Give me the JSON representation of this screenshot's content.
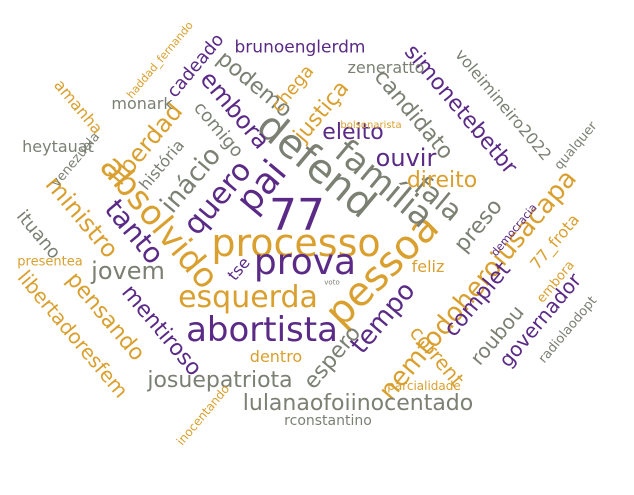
{
  "colors": {
    "gray": "#7b8073",
    "gold": "#d9a02f",
    "purple": "#5a2a86"
  },
  "words": [
    {
      "text": "77",
      "color": "purple"
    },
    {
      "text": "processo",
      "color": "gold"
    },
    {
      "text": "prova",
      "color": "purple"
    },
    {
      "text": "defend",
      "color": "gray"
    },
    {
      "text": "pai",
      "color": "purple"
    },
    {
      "text": "pessoa",
      "color": "gold"
    },
    {
      "text": "absolvido",
      "color": "gold"
    },
    {
      "text": "família",
      "color": "gray"
    },
    {
      "text": "abortista",
      "color": "purple"
    },
    {
      "text": "esquerda",
      "color": "gold"
    },
    {
      "text": "quero",
      "color": "purple"
    },
    {
      "text": "fala",
      "color": "gray"
    },
    {
      "text": "nemtodoheroiusacapa",
      "color": "gold"
    },
    {
      "text": "tanto",
      "color": "purple"
    },
    {
      "text": "inácio",
      "color": "gray"
    },
    {
      "text": "ministro",
      "color": "gold"
    },
    {
      "text": "liberdad",
      "color": "gold"
    },
    {
      "text": "embora",
      "color": "purple"
    },
    {
      "text": "podemo",
      "color": "gray"
    },
    {
      "text": "candidato",
      "color": "gray"
    },
    {
      "text": "simonetebetbr",
      "color": "purple"
    },
    {
      "text": "ouvir",
      "color": "purple"
    },
    {
      "text": "eleito",
      "color": "purple"
    },
    {
      "text": "direito",
      "color": "gold"
    },
    {
      "text": "justiça",
      "color": "gold"
    },
    {
      "text": "jovem",
      "color": "gray"
    },
    {
      "text": "josuepatriota",
      "color": "gray"
    },
    {
      "text": "lulanaofoiinocentado",
      "color": "gray"
    },
    {
      "text": "tempo",
      "color": "purple"
    },
    {
      "text": "espero",
      "color": "gray"
    },
    {
      "text": "mentiroso",
      "color": "purple"
    },
    {
      "text": "pensando",
      "color": "gold"
    },
    {
      "text": "libertadoresfem",
      "color": "gold"
    },
    {
      "text": "complet",
      "color": "purple"
    },
    {
      "text": "preso",
      "color": "gray"
    },
    {
      "text": "corrent",
      "color": "gold"
    },
    {
      "text": "roubou",
      "color": "gray"
    },
    {
      "text": "governador",
      "color": "purple"
    },
    {
      "text": "77_frota",
      "color": "gold"
    },
    {
      "text": "ituano",
      "color": "gray"
    },
    {
      "text": "história",
      "color": "gray"
    },
    {
      "text": "comigo",
      "color": "gray"
    },
    {
      "text": "chega",
      "color": "gold"
    },
    {
      "text": "cadeado",
      "color": "purple"
    },
    {
      "text": "monark",
      "color": "gray"
    },
    {
      "text": "heytauat",
      "color": "gray"
    },
    {
      "text": "venezuela",
      "color": "gray"
    },
    {
      "text": "amanha",
      "color": "gold"
    },
    {
      "text": "haddad_fernando",
      "color": "gold"
    },
    {
      "text": "brunoenglerdm",
      "color": "purple"
    },
    {
      "text": "zeneratto",
      "color": "gray"
    },
    {
      "text": "voleimineiro2022",
      "color": "gray"
    },
    {
      "text": "qualquer",
      "color": "gray"
    },
    {
      "text": "dentro",
      "color": "gold"
    },
    {
      "text": "feliz",
      "color": "gold"
    },
    {
      "text": "tse",
      "color": "purple"
    },
    {
      "text": "presentea",
      "color": "gold"
    },
    {
      "text": "embora",
      "color": "gold"
    },
    {
      "text": "radiolaodopt",
      "color": "gray"
    },
    {
      "text": "democracia",
      "color": "purple"
    },
    {
      "text": "parcialidade",
      "color": "gold"
    },
    {
      "text": "inocentando",
      "color": "gold"
    },
    {
      "text": "rconstantino",
      "color": "gray"
    },
    {
      "text": "bolsonarista",
      "color": "gold"
    },
    {
      "text": "voto",
      "color": "gray"
    }
  ]
}
